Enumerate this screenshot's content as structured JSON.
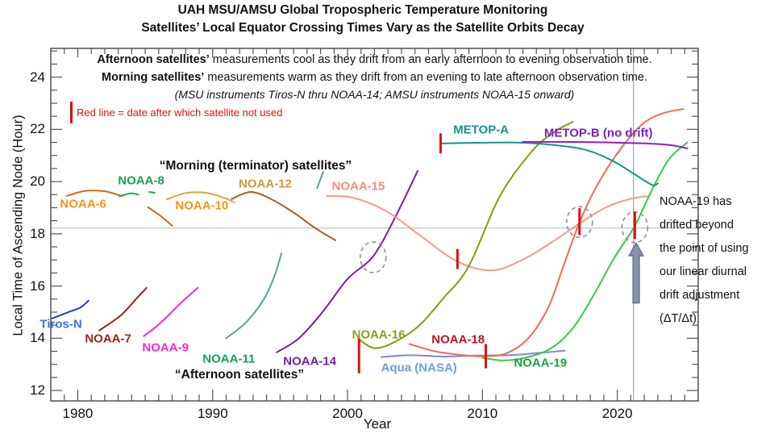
{
  "title": {
    "line1": "UAH MSU/AMSU Global Tropospheric Temperature Monitoring",
    "line2": "Satellites’ Local Equator Crossing Times Vary as the Satellite Orbits Decay"
  },
  "notes": {
    "afternoon_bold": "Afternoon satellites’",
    "afternoon_rest": " measurements cool as they drift from an early afternoon to evening observation time.",
    "morning_bold": "Morning satellites’",
    "morning_rest": " measurements warm as they drift from an evening to late afternoon observation time.",
    "instruments": "(MSU instruments Tiros-N thru NOAA-14; AMSU instruments NOAA-15 onward)",
    "red_line_legend": "Red line = date after which satellite not used"
  },
  "group_labels": {
    "morning": "“Morning (terminator) satellites”",
    "afternoon": "“Afternoon satellites”"
  },
  "side_note": {
    "lines": [
      "NOAA-19 has",
      "drifted beyond",
      "the point of using",
      "our linear diurnal",
      "drift adjustment",
      "(ΔT/Δt)"
    ]
  },
  "axes": {
    "xlabel": "Year",
    "ylabel": "Local Time of Ascending Node (Hour)",
    "x_ticks": [
      1980,
      1990,
      2000,
      2010,
      2020
    ],
    "y_ticks": [
      12,
      14,
      16,
      18,
      20,
      22,
      24
    ],
    "xlim": [
      1978,
      2026.0
    ],
    "ylim": [
      11.6,
      25.1
    ]
  },
  "chart_data": {
    "type": "line",
    "xlabel": "Year",
    "ylabel": "Local Time of Ascending Node (Hour)",
    "reference_lines": {
      "horizontal_hour": 18.22,
      "vertical_year": 2021.2
    },
    "series": [
      {
        "name": "Tiros-N",
        "color": "#2442d6",
        "label_color": "#3f6fd0",
        "label_at": [
          1978.75,
          14.55
        ],
        "paths": [
          [
            [
              1978.1,
              14.76
            ],
            [
              1979.3,
              15.0
            ],
            [
              1980.2,
              15.18
            ],
            [
              1980.8,
              15.44
            ]
          ]
        ]
      },
      {
        "name": "NOAA-6",
        "color": "#c96a1d",
        "label_color": "#f7941d",
        "label_at": [
          1980.4,
          19.15
        ],
        "paths": [
          [
            [
              1979.2,
              19.45
            ],
            [
              1980.5,
              19.64
            ],
            [
              1982.0,
              19.63
            ],
            [
              1983.3,
              19.44
            ]
          ],
          [
            [
              1985.2,
              19.02
            ],
            [
              1986.1,
              18.7
            ],
            [
              1987.0,
              18.31
            ]
          ]
        ]
      },
      {
        "name": "NOAA-7",
        "color": "#9c2410",
        "label_color": "#9c2410",
        "label_at": [
          1982.25,
          13.97
        ],
        "paths": [
          [
            [
              1981.6,
              14.3
            ],
            [
              1983.2,
              14.88
            ],
            [
              1984.4,
              15.55
            ],
            [
              1985.1,
              15.93
            ]
          ]
        ]
      },
      {
        "name": "NOAA-8",
        "color": "#2aa34a",
        "label_color": "#1ca04e",
        "label_at": [
          1984.7,
          20.02
        ],
        "paths": [
          [
            [
              1983.1,
              19.44
            ],
            [
              1983.9,
              19.55
            ],
            [
              1984.5,
              19.5
            ]
          ],
          [
            [
              1985.3,
              19.6
            ],
            [
              1985.7,
              19.57
            ]
          ]
        ]
      },
      {
        "name": "NOAA-9",
        "color": "#f32cc8",
        "label_color": "#f32cc8",
        "label_at": [
          1986.5,
          13.65
        ],
        "paths": [
          [
            [
              1984.9,
              14.08
            ],
            [
              1986.2,
              14.62
            ],
            [
              1987.7,
              15.38
            ],
            [
              1988.9,
              15.93
            ]
          ]
        ]
      },
      {
        "name": "NOAA-10",
        "color": "#e2a43c",
        "label_color": "#f7941d",
        "label_at": [
          1989.2,
          19.08
        ],
        "paths": [
          [
            [
              1986.6,
              19.32
            ],
            [
              1988.0,
              19.56
            ],
            [
              1989.5,
              19.57
            ],
            [
              1990.9,
              19.37
            ],
            [
              1991.6,
              19.2
            ]
          ]
        ]
      },
      {
        "name": "NOAA-11",
        "color": "#5f9ea0",
        "label_color": "#12a455",
        "label_at": [
          1991.2,
          13.2
        ],
        "paths": [
          [
            [
              1991.0,
              14.0
            ],
            [
              1992.5,
              14.62
            ],
            [
              1993.8,
              15.5
            ],
            [
              1994.6,
              16.4
            ],
            [
              1995.1,
              17.25
            ]
          ],
          [
            [
              1997.75,
              19.75
            ],
            [
              1998.2,
              20.38
            ]
          ]
        ]
      },
      {
        "name": "NOAA-12",
        "color": "#ad5c20",
        "label_color": "#d09a3a",
        "label_at": [
          1993.9,
          19.9
        ],
        "paths": [
          [
            [
              1991.4,
              19.33
            ],
            [
              1992.8,
              19.6
            ],
            [
              1994.3,
              19.34
            ],
            [
              1996.1,
              18.78
            ],
            [
              1997.6,
              18.22
            ],
            [
              1999.1,
              17.75
            ]
          ]
        ]
      },
      {
        "name": "NOAA-14",
        "color": "#7b1fa2",
        "label_color": "#7b1fa2",
        "label_at": [
          1997.2,
          13.1
        ],
        "paths": [
          [
            [
              1994.75,
              13.46
            ],
            [
              1996.4,
              14.0
            ],
            [
              1998.2,
              15.04
            ],
            [
              2000.0,
              16.27
            ],
            [
              2001.9,
              17.14
            ],
            [
              2003.5,
              18.6
            ],
            [
              2005.2,
              20.41
            ]
          ]
        ]
      },
      {
        "name": "NOAA-15",
        "color": "#f59b85",
        "label_color": "#f78f70",
        "label_at": [
          2000.8,
          19.82
        ],
        "paths": [
          [
            [
              1998.45,
              19.45
            ],
            [
              2000.5,
              19.37
            ],
            [
              2002.9,
              18.86
            ],
            [
              2005.3,
              17.97
            ],
            [
              2008.1,
              16.95
            ],
            [
              2010.7,
              16.6
            ],
            [
              2013.1,
              17.04
            ],
            [
              2015.5,
              17.8
            ],
            [
              2017.2,
              18.4
            ],
            [
              2019.1,
              19.0
            ],
            [
              2020.9,
              19.33
            ],
            [
              2022.4,
              19.45
            ]
          ]
        ]
      },
      {
        "name": "NOAA-16",
        "color": "#8c9a14",
        "label_color": "#7fa314",
        "label_at": [
          2002.3,
          14.12
        ],
        "paths": [
          [
            [
              2000.8,
              13.98
            ],
            [
              2002.0,
              13.62
            ],
            [
              2003.5,
              13.86
            ],
            [
              2005.3,
              14.48
            ],
            [
              2007.1,
              15.53
            ],
            [
              2009.0,
              16.77
            ],
            [
              2011.3,
              19.45
            ],
            [
              2013.7,
              21.18
            ],
            [
              2015.4,
              21.92
            ],
            [
              2016.7,
              22.29
            ]
          ]
        ]
      },
      {
        "name": "Aqua (NASA)",
        "color": "#8084e2",
        "label_color": "#6f9ce0",
        "label_at": [
          2005.3,
          12.86
        ],
        "paths": [
          [
            [
              2002.5,
              13.28
            ],
            [
              2004.7,
              13.35
            ],
            [
              2007.1,
              13.3
            ],
            [
              2009.5,
              13.34
            ],
            [
              2011.9,
              13.35
            ],
            [
              2014.0,
              13.43
            ],
            [
              2016.1,
              13.52
            ]
          ]
        ]
      },
      {
        "name": "NOAA-18",
        "color": "#f26a55",
        "label_color": "#c41220",
        "label_at": [
          2008.2,
          13.95
        ],
        "paths": [
          [
            [
              2004.6,
              13.78
            ],
            [
              2006.5,
              13.5
            ],
            [
              2008.6,
              13.35
            ],
            [
              2010.2,
              13.31
            ],
            [
              2011.8,
              13.43
            ],
            [
              2013.4,
              14.0
            ],
            [
              2014.9,
              15.2
            ],
            [
              2016.1,
              16.9
            ],
            [
              2017.25,
              18.5
            ],
            [
              2018.5,
              19.85
            ],
            [
              2020.1,
              21.15
            ],
            [
              2021.8,
              22.17
            ],
            [
              2023.3,
              22.6
            ],
            [
              2024.9,
              22.78
            ]
          ]
        ]
      },
      {
        "name": "NOAA-19",
        "color": "#33cc44",
        "label_color": "#13a53c",
        "label_at": [
          2014.3,
          13.04
        ],
        "paths": [
          [
            [
              2010.0,
              13.25
            ],
            [
              2011.6,
              13.15
            ],
            [
              2013.4,
              13.28
            ],
            [
              2015.2,
              13.65
            ],
            [
              2016.8,
              14.45
            ],
            [
              2018.3,
              15.7
            ],
            [
              2019.8,
              17.1
            ],
            [
              2021.3,
              18.31
            ],
            [
              2022.7,
              19.82
            ],
            [
              2023.9,
              20.9
            ],
            [
              2025.2,
              21.5
            ]
          ]
        ]
      },
      {
        "name": "METOP-A",
        "color": "#12958f",
        "label_color": "#12958f",
        "label_at": [
          2009.9,
          21.97
        ],
        "paths": [
          [
            [
              2007.0,
              21.46
            ],
            [
              2010.0,
              21.49
            ],
            [
              2013.0,
              21.49
            ],
            [
              2016.0,
              21.36
            ],
            [
              2017.9,
              21.18
            ],
            [
              2019.7,
              20.78
            ],
            [
              2021.2,
              20.31
            ],
            [
              2022.2,
              19.98
            ],
            [
              2022.7,
              19.85
            ],
            [
              2023.0,
              19.93
            ]
          ]
        ]
      },
      {
        "name": "METOP-B (no drift)",
        "color": "#8a1ec8",
        "label_color": "#7a1fc0",
        "label_at": [
          2018.6,
          21.85
        ],
        "paths": [
          [
            [
              2013.0,
              21.52
            ],
            [
              2016.0,
              21.52
            ],
            [
              2019.1,
              21.5
            ],
            [
              2022.1,
              21.46
            ],
            [
              2023.9,
              21.4
            ],
            [
              2025.2,
              21.27
            ]
          ]
        ]
      }
    ],
    "markers": {
      "end_of_use_lines": [
        {
          "year": 2000.85,
          "hour_from": 12.66,
          "hour_to": 13.99
        },
        {
          "year": 2006.9,
          "hour_from": 21.08,
          "hour_to": 21.85
        },
        {
          "year": 2008.15,
          "hour_from": 16.65,
          "hour_to": 17.42
        },
        {
          "year": 2010.25,
          "hour_from": 12.85,
          "hour_to": 13.78
        },
        {
          "year": 2017.2,
          "hour_from": 17.95,
          "hour_to": 18.98
        },
        {
          "year": 2021.3,
          "hour_from": 17.8,
          "hour_to": 18.85
        }
      ],
      "dashed_circles": [
        {
          "year": 2001.9,
          "hour": 17.1
        },
        {
          "year": 2017.2,
          "hour": 18.45
        },
        {
          "year": 2021.3,
          "hour": 18.25
        }
      ],
      "arrow": {
        "year": 2021.4,
        "hour_tail": 15.35,
        "hour_tip": 17.65
      }
    },
    "colors": {
      "red_mark": "#e01010",
      "h_ref_line": "#b8cede",
      "v_ref_line": "#8194c9",
      "circle": "#909090",
      "arrow_fill": "#8593ad",
      "arrow_stroke": "#5a6a8a"
    }
  }
}
